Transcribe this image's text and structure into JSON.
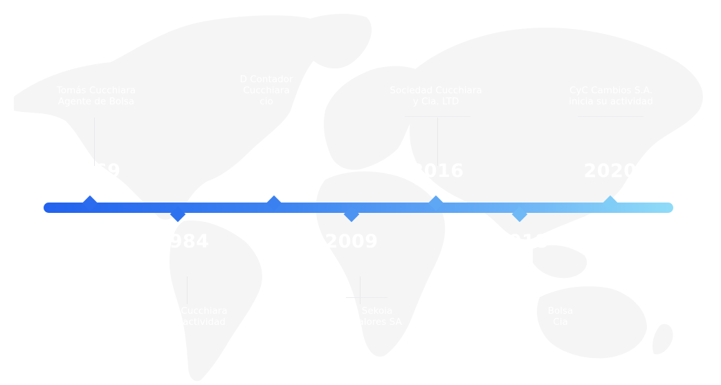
{
  "timeline": {
    "events": [
      {
        "year": "1969",
        "caption_lines": [
          "Tomás Cucchiara",
          "Agente de Bolsa"
        ]
      },
      {
        "year": "1984",
        "caption_lines": [
          "Cucchiara",
          "actividad"
        ]
      },
      {
        "year": "2001",
        "caption_lines": [
          "D Contador",
          "Cucchiara",
          "cio"
        ]
      },
      {
        "year": "2009",
        "caption_lines": [
          "Sekoia",
          "Valores SA"
        ]
      },
      {
        "year": "2016",
        "caption_lines": [
          "Sociedad Cucchiara",
          "y Cia. LTD"
        ]
      },
      {
        "year": "2018",
        "caption_lines": [
          "Bolsa",
          "Cia"
        ]
      },
      {
        "year": "2020",
        "caption_lines": [
          "CyC Cambios S.A.",
          "inicia su actividad"
        ]
      }
    ]
  },
  "colors": {
    "gradient_start": "#2262ee",
    "gradient_end": "#8fdcf8",
    "map_fill": "#f5f5f6"
  }
}
